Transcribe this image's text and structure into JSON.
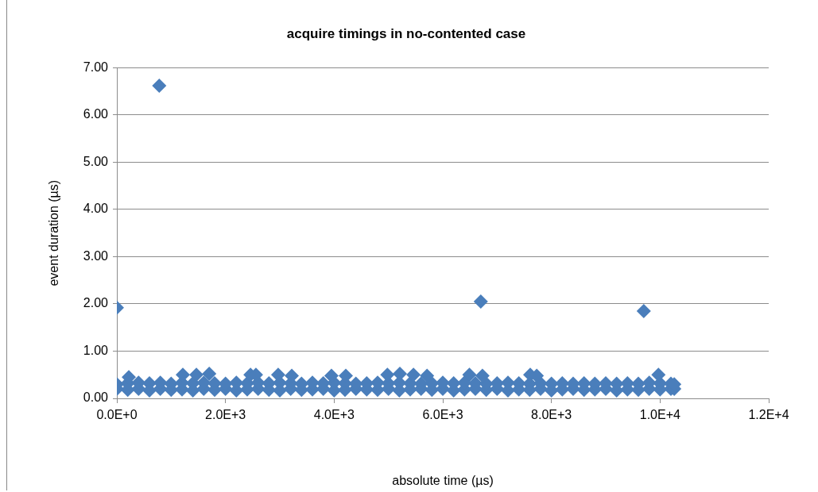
{
  "chart_data": {
    "type": "scatter",
    "title": "acquire timings in no-contented case",
    "xlabel": "absolute time (µs)",
    "ylabel": "event duration (µs)",
    "marker": "diamond",
    "grid": "y",
    "legend": false,
    "xlim": [
      0,
      12000
    ],
    "ylim": [
      0,
      7
    ],
    "xticks": [
      {
        "value": 0,
        "label": "0.0E+0"
      },
      {
        "value": 2000,
        "label": "2.0E+3"
      },
      {
        "value": 4000,
        "label": "4.0E+3"
      },
      {
        "value": 6000,
        "label": "6.0E+3"
      },
      {
        "value": 8000,
        "label": "8.0E+3"
      },
      {
        "value": 10000,
        "label": "1.0E+4"
      },
      {
        "value": 12000,
        "label": "1.2E+4"
      }
    ],
    "yticks": [
      {
        "value": 0,
        "label": "0.00"
      },
      {
        "value": 1,
        "label": "1.00"
      },
      {
        "value": 2,
        "label": "2.00"
      },
      {
        "value": 3,
        "label": "3.00"
      },
      {
        "value": 4,
        "label": "4.00"
      },
      {
        "value": 5,
        "label": "5.00"
      },
      {
        "value": 6,
        "label": "6.00"
      },
      {
        "value": 7,
        "label": "7.00"
      }
    ],
    "series": [
      {
        "color": "#4a7ebb",
        "x": [
          0,
          0,
          200,
          200,
          400,
          400,
          600,
          600,
          800,
          800,
          1000,
          1000,
          1200,
          1200,
          1400,
          1400,
          1600,
          1600,
          1800,
          1800,
          2000,
          2000,
          2200,
          2200,
          2400,
          2400,
          2600,
          2600,
          2800,
          2800,
          3000,
          3000,
          3200,
          3200,
          3400,
          3400,
          3600,
          3600,
          3800,
          3800,
          4000,
          4000,
          4200,
          4200,
          4400,
          4400,
          4600,
          4600,
          4800,
          4800,
          5000,
          5000,
          5200,
          5200,
          5400,
          5400,
          5600,
          5600,
          5800,
          5800,
          6000,
          6000,
          6200,
          6200,
          6400,
          6400,
          6600,
          6600,
          6800,
          6800,
          7000,
          7000,
          7200,
          7200,
          7400,
          7400,
          7600,
          7600,
          7800,
          7800,
          8000,
          8000,
          8200,
          8200,
          8400,
          8400,
          8600,
          8600,
          8800,
          8800,
          9000,
          9000,
          9200,
          9200,
          9400,
          9400,
          9600,
          9600,
          9800,
          9800,
          10000,
          10000,
          10200,
          10200,
          10260,
          10260,
          220,
          1215,
          1464,
          1700,
          2460,
          2560,
          2970,
          3220,
          3950,
          4215,
          4980,
          5210,
          5460,
          5710,
          6490,
          6730,
          7610,
          7730,
          9970,
          0,
          780,
          6700,
          9700
        ],
        "values": [
          0.2,
          0.3,
          0.18,
          0.32,
          0.2,
          0.33,
          0.17,
          0.32,
          0.2,
          0.33,
          0.18,
          0.31,
          0.19,
          0.33,
          0.17,
          0.32,
          0.2,
          0.33,
          0.18,
          0.32,
          0.2,
          0.31,
          0.17,
          0.33,
          0.19,
          0.32,
          0.2,
          0.33,
          0.18,
          0.32,
          0.17,
          0.33,
          0.2,
          0.32,
          0.18,
          0.31,
          0.19,
          0.33,
          0.2,
          0.32,
          0.17,
          0.33,
          0.18,
          0.32,
          0.2,
          0.31,
          0.19,
          0.32,
          0.18,
          0.33,
          0.2,
          0.32,
          0.17,
          0.33,
          0.19,
          0.32,
          0.2,
          0.31,
          0.18,
          0.32,
          0.2,
          0.33,
          0.17,
          0.32,
          0.19,
          0.33,
          0.2,
          0.32,
          0.18,
          0.31,
          0.2,
          0.32,
          0.17,
          0.33,
          0.19,
          0.32,
          0.18,
          0.31,
          0.2,
          0.32,
          0.17,
          0.31,
          0.19,
          0.32,
          0.2,
          0.31,
          0.18,
          0.32,
          0.19,
          0.31,
          0.2,
          0.32,
          0.17,
          0.31,
          0.19,
          0.32,
          0.18,
          0.31,
          0.2,
          0.33,
          0.19,
          0.32,
          0.2,
          0.31,
          0.2,
          0.3,
          0.45,
          0.5,
          0.5,
          0.52,
          0.5,
          0.5,
          0.5,
          0.48,
          0.48,
          0.48,
          0.5,
          0.52,
          0.5,
          0.48,
          0.5,
          0.48,
          0.5,
          0.48,
          0.5,
          1.92,
          6.62,
          2.05,
          1.85
        ]
      }
    ]
  }
}
